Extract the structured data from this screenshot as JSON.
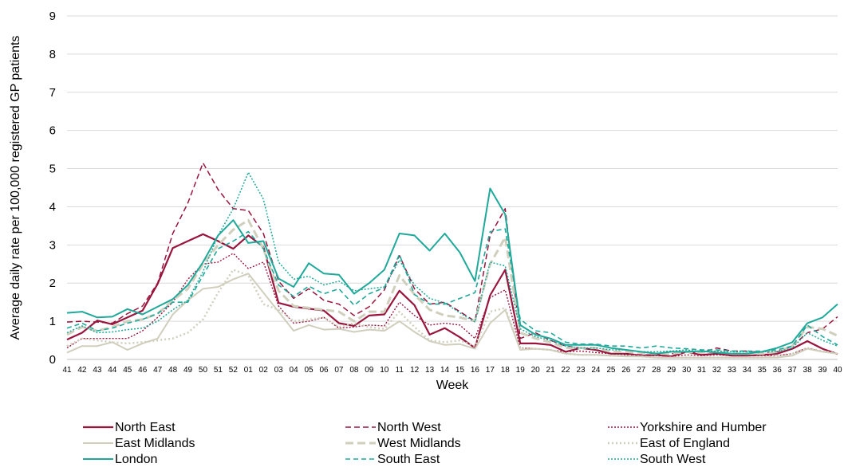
{
  "chart_data": {
    "type": "line",
    "title": "",
    "xlabel": "Week",
    "ylabel": "Average daily rate per 100,000 registered GP patients",
    "ylim": [
      0,
      9
    ],
    "yticks": [
      0,
      1,
      2,
      3,
      4,
      5,
      6,
      7,
      8,
      9
    ],
    "grid": "horizontal",
    "legend_position": "bottom",
    "categories": [
      "41",
      "42",
      "43",
      "44",
      "45",
      "46",
      "47",
      "48",
      "49",
      "50",
      "51",
      "52",
      "01",
      "02",
      "03",
      "04",
      "05",
      "06",
      "07",
      "08",
      "09",
      "10",
      "11",
      "12",
      "13",
      "14",
      "15",
      "16",
      "17",
      "18",
      "19",
      "20",
      "21",
      "22",
      "23",
      "24",
      "25",
      "26",
      "27",
      "28",
      "29",
      "30",
      "31",
      "32",
      "33",
      "34",
      "35",
      "36",
      "37",
      "38",
      "39",
      "40"
    ],
    "series": [
      {
        "name": "North East",
        "color": "#99153d",
        "dash": "solid",
        "width": 2.2,
        "values": [
          0.52,
          0.7,
          1.02,
          0.92,
          1.1,
          1.28,
          1.98,
          2.92,
          3.1,
          3.28,
          3.1,
          2.9,
          3.25,
          2.95,
          1.48,
          1.38,
          1.33,
          1.28,
          0.95,
          0.88,
          1.15,
          1.18,
          1.8,
          1.42,
          0.65,
          0.82,
          0.58,
          0.3,
          1.68,
          2.35,
          0.42,
          0.42,
          0.38,
          0.2,
          0.3,
          0.25,
          0.15,
          0.15,
          0.1,
          0.12,
          0.08,
          0.2,
          0.12,
          0.15,
          0.1,
          0.1,
          0.12,
          0.15,
          0.28,
          0.48,
          0.28,
          0.14
        ]
      },
      {
        "name": "North West",
        "color": "#99153d",
        "dash": "7,4",
        "width": 1.5,
        "values": [
          0.98,
          1.0,
          0.98,
          0.95,
          1.2,
          1.4,
          2.0,
          3.3,
          4.1,
          5.15,
          4.45,
          3.95,
          3.9,
          3.3,
          2.05,
          1.6,
          1.85,
          1.55,
          1.45,
          1.15,
          1.38,
          1.82,
          2.72,
          1.85,
          1.45,
          1.5,
          1.25,
          1.0,
          3.25,
          3.95,
          0.55,
          0.7,
          0.5,
          0.35,
          0.3,
          0.25,
          0.15,
          0.15,
          0.12,
          0.12,
          0.15,
          0.2,
          0.18,
          0.3,
          0.22,
          0.22,
          0.18,
          0.2,
          0.35,
          0.7,
          0.8,
          1.12
        ]
      },
      {
        "name": "Yorkshire and Humber",
        "color": "#99153d",
        "dash": "2,2",
        "width": 1.4,
        "values": [
          0.3,
          0.55,
          0.55,
          0.55,
          0.55,
          0.75,
          1.1,
          1.5,
          2.1,
          2.5,
          2.55,
          2.78,
          2.38,
          2.55,
          1.4,
          0.95,
          1.0,
          1.1,
          0.82,
          0.85,
          0.9,
          0.88,
          1.5,
          1.15,
          0.9,
          0.95,
          0.9,
          0.55,
          1.62,
          1.82,
          0.3,
          0.28,
          0.25,
          0.2,
          0.22,
          0.18,
          0.15,
          0.12,
          0.1,
          0.1,
          0.08,
          0.12,
          0.1,
          0.12,
          0.1,
          0.1,
          0.1,
          0.1,
          0.15,
          0.3,
          0.2,
          0.15
        ]
      },
      {
        "name": "East Midlands",
        "color": "#d0cfbd",
        "dash": "solid",
        "width": 2,
        "values": [
          0.18,
          0.35,
          0.35,
          0.45,
          0.25,
          0.42,
          0.55,
          1.18,
          1.55,
          1.85,
          1.9,
          2.1,
          2.25,
          1.75,
          1.25,
          0.75,
          0.9,
          0.78,
          0.8,
          0.72,
          0.78,
          0.75,
          1.0,
          0.72,
          0.48,
          0.38,
          0.4,
          0.28,
          0.95,
          1.3,
          0.25,
          0.28,
          0.25,
          0.15,
          0.12,
          0.12,
          0.1,
          0.08,
          0.08,
          0.05,
          0.05,
          0.05,
          0.05,
          0.05,
          0.05,
          0.05,
          0.05,
          0.05,
          0.1,
          0.28,
          0.2,
          0.15
        ]
      },
      {
        "name": "West Midlands",
        "color": "#d0cfbd",
        "dash": "10,5",
        "width": 3,
        "values": [
          0.65,
          0.85,
          0.75,
          0.85,
          1.0,
          1.05,
          1.2,
          1.55,
          1.85,
          2.5,
          3.0,
          3.4,
          3.65,
          2.9,
          1.8,
          1.4,
          1.35,
          1.3,
          1.25,
          1.0,
          1.25,
          1.25,
          2.2,
          1.7,
          1.3,
          1.15,
          1.1,
          1.0,
          2.5,
          3.2,
          0.7,
          0.55,
          0.45,
          0.3,
          0.3,
          0.3,
          0.2,
          0.2,
          0.18,
          0.15,
          0.15,
          0.2,
          0.18,
          0.2,
          0.15,
          0.15,
          0.15,
          0.2,
          0.35,
          0.85,
          0.8,
          0.62
        ]
      },
      {
        "name": "East of England",
        "color": "#d0cfbd",
        "dash": "2,3",
        "width": 2.5,
        "values": [
          0.35,
          0.55,
          0.5,
          0.45,
          0.42,
          0.45,
          0.5,
          0.55,
          0.7,
          1.05,
          1.75,
          2.35,
          2.2,
          1.45,
          1.3,
          1.0,
          1.05,
          1.1,
          0.85,
          0.95,
          0.85,
          0.8,
          1.25,
          0.85,
          0.5,
          0.45,
          0.5,
          0.35,
          1.25,
          1.35,
          0.3,
          0.28,
          0.25,
          0.15,
          0.12,
          0.12,
          0.1,
          0.1,
          0.08,
          0.05,
          0.05,
          0.05,
          0.05,
          0.05,
          0.05,
          0.05,
          0.05,
          0.1,
          0.15,
          0.3,
          0.22,
          0.15
        ]
      },
      {
        "name": "London",
        "color": "#1fa99a",
        "dash": "solid",
        "width": 2,
        "values": [
          1.22,
          1.25,
          1.1,
          1.12,
          1.32,
          1.18,
          1.38,
          1.58,
          1.95,
          2.55,
          3.25,
          3.65,
          3.05,
          3.1,
          2.12,
          1.9,
          2.52,
          2.25,
          2.22,
          1.72,
          2.0,
          2.35,
          3.3,
          3.25,
          2.85,
          3.3,
          2.8,
          2.05,
          4.48,
          3.8,
          0.9,
          0.65,
          0.55,
          0.38,
          0.38,
          0.38,
          0.3,
          0.25,
          0.2,
          0.15,
          0.2,
          0.2,
          0.22,
          0.18,
          0.15,
          0.15,
          0.2,
          0.3,
          0.45,
          0.95,
          1.1,
          1.45
        ]
      },
      {
        "name": "South East",
        "color": "#1fa99a",
        "dash": "6,4",
        "width": 1.6,
        "values": [
          0.82,
          0.95,
          0.75,
          0.82,
          0.95,
          1.05,
          1.2,
          1.5,
          1.5,
          2.2,
          2.9,
          3.1,
          3.35,
          2.9,
          1.95,
          1.65,
          1.92,
          1.72,
          1.85,
          1.42,
          1.72,
          1.88,
          2.75,
          1.7,
          1.45,
          1.45,
          1.6,
          1.75,
          3.35,
          3.42,
          1.05,
          0.75,
          0.7,
          0.45,
          0.4,
          0.4,
          0.35,
          0.35,
          0.3,
          0.35,
          0.3,
          0.28,
          0.25,
          0.25,
          0.22,
          0.22,
          0.22,
          0.25,
          0.35,
          0.9,
          0.6,
          0.38
        ]
      },
      {
        "name": "South West",
        "color": "#1fa99a",
        "dash": "2,2",
        "width": 1.5,
        "values": [
          0.7,
          0.88,
          0.7,
          0.72,
          0.78,
          0.82,
          1.0,
          1.3,
          1.55,
          2.3,
          3.25,
          3.95,
          4.9,
          4.2,
          2.55,
          2.1,
          2.18,
          1.95,
          2.05,
          1.8,
          1.85,
          1.9,
          2.6,
          1.95,
          1.6,
          1.48,
          1.22,
          0.98,
          2.55,
          2.45,
          0.8,
          0.6,
          0.5,
          0.35,
          0.3,
          0.3,
          0.25,
          0.25,
          0.2,
          0.2,
          0.22,
          0.25,
          0.2,
          0.22,
          0.2,
          0.2,
          0.2,
          0.2,
          0.3,
          0.7,
          0.5,
          0.35
        ]
      }
    ]
  }
}
